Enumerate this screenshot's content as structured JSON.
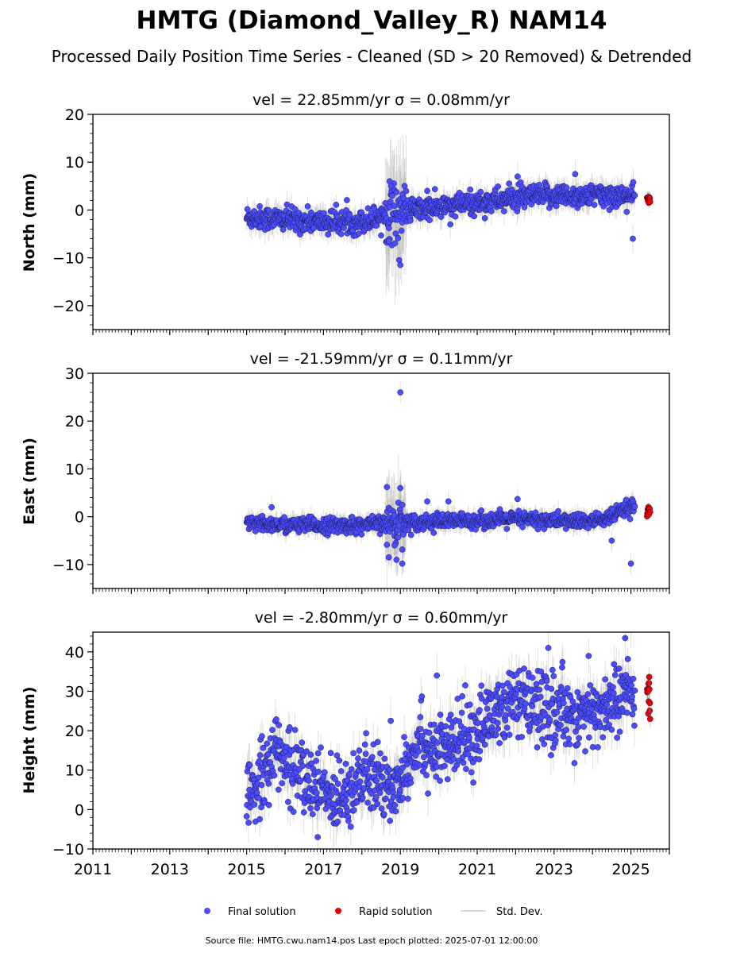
{
  "title": "HMTG (Diamond_Valley_R) NAM14",
  "subtitle": "Processed Daily Position Time Series - Cleaned (SD > 20 Removed) & Detrended",
  "footer": "Source file: HMTG.cwu.nam14.pos  Last epoch plotted: 2025-07-01 12:00:00",
  "legend": {
    "final": "Final solution",
    "rapid": "Rapid solution",
    "std": "Std. Dev."
  },
  "colors": {
    "final": "#4b4bff",
    "rapid": "#e8000b",
    "std": "#8c8c8c"
  },
  "chart_data": [
    {
      "type": "scatter",
      "title": "vel = 22.85mm/yr   σ = 0.08mm/yr",
      "ylabel": "North (mm)",
      "xlim": [
        2011,
        2026
      ],
      "ylim": [
        -25,
        20
      ],
      "yticks": [
        20,
        10,
        0,
        -10,
        -20
      ],
      "tick_labels": [
        "20",
        "10",
        "0",
        "−10",
        "−20"
      ],
      "trend": {
        "x": [
          2015.0,
          2016.0,
          2017.0,
          2018.0,
          2018.6,
          2019.3,
          2020.0,
          2021.0,
          2022.0,
          2023.0,
          2024.0,
          2025.0
        ],
        "y": [
          -1.5,
          -2.0,
          -2.5,
          -2.5,
          -1.0,
          0.0,
          0.5,
          1.5,
          2.5,
          3.0,
          3.0,
          3.0
        ]
      },
      "scatter_sd": 1.2,
      "std_sd": 2.0,
      "outliers": [
        {
          "x": 2018.72,
          "y": 6.0
        },
        {
          "x": 2018.76,
          "y": 5.0
        },
        {
          "x": 2018.7,
          "y": -6.5
        },
        {
          "x": 2019.0,
          "y": -11.5
        },
        {
          "x": 2019.7,
          "y": 4.0
        },
        {
          "x": 2020.3,
          "y": -3.0
        },
        {
          "x": 2022.05,
          "y": 7.0
        },
        {
          "x": 2023.55,
          "y": 7.5
        },
        {
          "x": 2025.05,
          "y": -6.0
        }
      ],
      "rapid": {
        "x_start": 2025.42,
        "x_end": 2025.5,
        "y_mean": 2.3,
        "y_sd": 0.4
      }
    },
    {
      "type": "scatter",
      "title": "vel = -21.59mm/yr   σ = 0.11mm/yr",
      "ylabel": "East (mm)",
      "xlim": [
        2011,
        2026
      ],
      "ylim": [
        -15,
        30
      ],
      "yticks": [
        30,
        20,
        10,
        0,
        -10
      ],
      "tick_labels": [
        "30",
        "20",
        "10",
        "0",
        "−10"
      ],
      "trend": {
        "x": [
          2015.0,
          2016.0,
          2017.0,
          2018.0,
          2019.0,
          2020.0,
          2021.0,
          2022.0,
          2023.0,
          2024.0,
          2024.5,
          2025.0
        ],
        "y": [
          -1.5,
          -1.8,
          -1.8,
          -1.8,
          -1.2,
          -1.0,
          -0.8,
          -0.5,
          -0.8,
          -1.0,
          0.0,
          2.0
        ]
      },
      "scatter_sd": 0.8,
      "std_sd": 1.5,
      "outliers": [
        {
          "x": 2019.0,
          "y": 26.0
        },
        {
          "x": 2018.65,
          "y": 6.2
        },
        {
          "x": 2019.0,
          "y": 6.0
        },
        {
          "x": 2018.7,
          "y": -8.5
        },
        {
          "x": 2018.9,
          "y": -9.0
        },
        {
          "x": 2019.05,
          "y": -9.8
        },
        {
          "x": 2018.85,
          "y": -6.0
        },
        {
          "x": 2019.05,
          "y": 2.5
        },
        {
          "x": 2015.65,
          "y": 2.0
        },
        {
          "x": 2019.7,
          "y": 3.2
        },
        {
          "x": 2020.25,
          "y": 3.2
        },
        {
          "x": 2022.05,
          "y": 3.7
        },
        {
          "x": 2024.5,
          "y": -5.0
        },
        {
          "x": 2025.0,
          "y": -9.8
        }
      ],
      "rapid": {
        "x_start": 2025.42,
        "x_end": 2025.5,
        "y_mean": 1.0,
        "y_sd": 0.5
      }
    },
    {
      "type": "scatter",
      "title": "vel = -2.80mm/yr   σ = 0.60mm/yr",
      "ylabel": "Height (mm)",
      "xlim": [
        2011,
        2026
      ],
      "ylim": [
        -10,
        45
      ],
      "yticks": [
        40,
        30,
        20,
        10,
        0,
        -10
      ],
      "tick_labels": [
        "40",
        "30",
        "20",
        "10",
        "0",
        "−10"
      ],
      "xticks": [
        2011,
        2013,
        2015,
        2017,
        2019,
        2021,
        2023,
        2025
      ],
      "trend": {
        "x": [
          2015.0,
          2015.7,
          2016.5,
          2017.2,
          2018.0,
          2018.8,
          2019.5,
          2020.0,
          2021.0,
          2021.5,
          2022.0,
          2023.0,
          2024.0,
          2025.0
        ],
        "y": [
          2.0,
          15.0,
          8.0,
          3.0,
          8.0,
          5.0,
          18.0,
          14.0,
          20.0,
          25.0,
          27.0,
          25.0,
          24.0,
          30.0
        ]
      },
      "scatter_sd": 4.5,
      "std_sd": 4.0,
      "outliers": [
        {
          "x": 2019.95,
          "y": 34.0
        },
        {
          "x": 2018.75,
          "y": 22.5
        },
        {
          "x": 2022.85,
          "y": 41.0
        },
        {
          "x": 2024.85,
          "y": 43.5
        },
        {
          "x": 2016.85,
          "y": -7.0
        }
      ],
      "rapid": {
        "x_start": 2025.42,
        "x_end": 2025.5,
        "y_mean": 29.0,
        "y_sd": 2.5
      }
    }
  ]
}
